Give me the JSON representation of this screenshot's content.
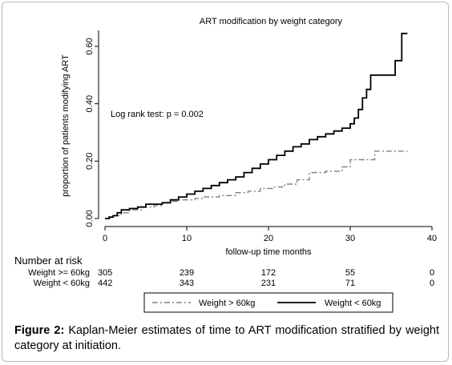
{
  "chart_data": {
    "type": "line",
    "title": "ART modification by weight category",
    "xlabel": "follow-up time months",
    "ylabel": "proportion of patients modifying ART",
    "xlim": [
      0,
      40
    ],
    "ylim": [
      0,
      0.65
    ],
    "x_ticks": [
      0,
      10,
      20,
      30,
      40
    ],
    "x_tick_labels": [
      "0",
      "10",
      "20",
      "30",
      "40"
    ],
    "y_ticks": [
      0,
      0.2,
      0.4,
      0.6
    ],
    "y_tick_labels": [
      "0.00",
      "0.20",
      "0.40",
      "0.60"
    ],
    "grid": false,
    "annotation": "Log rank test: p = 0.002",
    "legend_position": "bottom",
    "series": [
      {
        "name": "Weight > 60kg",
        "style": "dash-dot",
        "color": "#808080",
        "x": [
          0,
          0.6,
          1.2,
          2,
          3,
          4.5,
          6,
          7,
          8,
          9,
          11,
          12,
          14,
          16,
          17.5,
          19,
          20.5,
          22,
          23.5,
          25,
          27,
          29,
          30,
          33,
          37
        ],
        "y": [
          0,
          0.005,
          0.01,
          0.02,
          0.03,
          0.04,
          0.045,
          0.055,
          0.06,
          0.065,
          0.07,
          0.075,
          0.08,
          0.09,
          0.095,
          0.105,
          0.11,
          0.12,
          0.135,
          0.16,
          0.165,
          0.18,
          0.205,
          0.235,
          0.235
        ]
      },
      {
        "name": "Weight < 60kg",
        "style": "solid",
        "color": "#000000",
        "x": [
          0,
          0.5,
          1,
          1.5,
          2,
          3,
          4,
          5,
          7,
          8,
          9,
          10,
          11,
          12,
          13,
          14,
          15,
          16,
          17,
          18,
          19,
          20,
          21,
          22,
          23,
          24,
          25,
          26,
          27,
          28,
          29,
          30,
          30.5,
          31,
          31.5,
          32,
          32.5,
          34,
          35.5,
          36.3,
          37
        ],
        "y": [
          0,
          0.005,
          0.01,
          0.02,
          0.03,
          0.035,
          0.04,
          0.05,
          0.055,
          0.065,
          0.075,
          0.085,
          0.095,
          0.105,
          0.115,
          0.125,
          0.135,
          0.145,
          0.16,
          0.175,
          0.19,
          0.205,
          0.22,
          0.235,
          0.25,
          0.26,
          0.275,
          0.285,
          0.295,
          0.305,
          0.315,
          0.33,
          0.35,
          0.38,
          0.42,
          0.45,
          0.5,
          0.5,
          0.55,
          0.645,
          0.645
        ]
      }
    ],
    "risk_table": {
      "title": "Number at risk",
      "times": [
        0,
        10,
        20,
        30,
        40
      ],
      "rows": [
        {
          "label": "Weight >= 60kg",
          "counts": [
            "305",
            "239",
            "172",
            "55",
            "0"
          ]
        },
        {
          "label": "Weight < 60kg",
          "counts": [
            "442",
            "343",
            "231",
            "71",
            "0"
          ]
        }
      ]
    }
  },
  "caption": {
    "label": "Figure 2:",
    "text": " Kaplan-Meier estimates of time to ART modification stratified by weight category at initiation."
  }
}
